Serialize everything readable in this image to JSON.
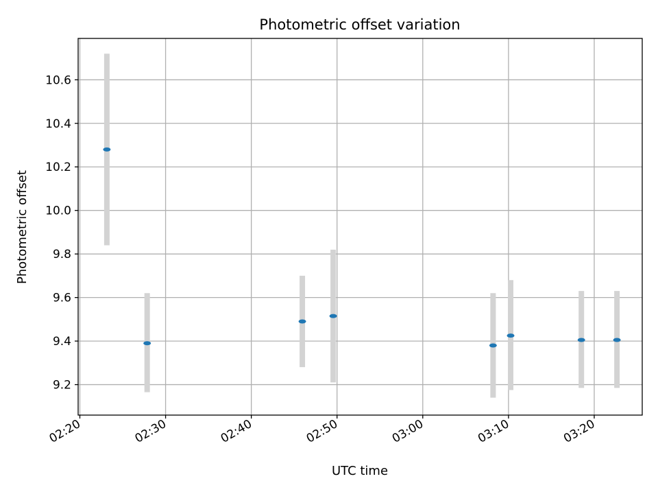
{
  "chart_data": {
    "type": "scatter",
    "title": "Photometric offset variation",
    "xlabel": "UTC time",
    "ylabel": "Photometric offset",
    "grid": true,
    "xlim": [
      "02:19.8",
      "03:25.6"
    ],
    "ylim": [
      9.06,
      10.79
    ],
    "x_ticks": [
      "02:20",
      "02:30",
      "02:40",
      "02:50",
      "03:00",
      "03:10",
      "03:20"
    ],
    "y_ticks": [
      9.2,
      9.4,
      9.6,
      9.8,
      10.0,
      10.2,
      10.4,
      10.6
    ],
    "points": [
      {
        "x": "02:23:09",
        "y": 10.28,
        "err_low": 9.84,
        "err_high": 10.72
      },
      {
        "x": "02:27:51",
        "y": 9.39,
        "err_low": 9.165,
        "err_high": 9.62
      },
      {
        "x": "02:45:57",
        "y": 9.49,
        "err_low": 9.28,
        "err_high": 9.7
      },
      {
        "x": "02:49:33",
        "y": 9.515,
        "err_low": 9.21,
        "err_high": 9.82
      },
      {
        "x": "03:08:12",
        "y": 9.38,
        "err_low": 9.14,
        "err_high": 9.62
      },
      {
        "x": "03:10:15",
        "y": 9.425,
        "err_low": 9.175,
        "err_high": 9.68
      },
      {
        "x": "03:18:30",
        "y": 9.405,
        "err_low": 9.185,
        "err_high": 9.63
      },
      {
        "x": "03:22:39",
        "y": 9.405,
        "err_low": 9.185,
        "err_high": 9.63
      }
    ],
    "colors": {
      "marker": "#1f77b4",
      "errorbar": "#d3d3d3",
      "grid": "#b0b0b0"
    }
  }
}
